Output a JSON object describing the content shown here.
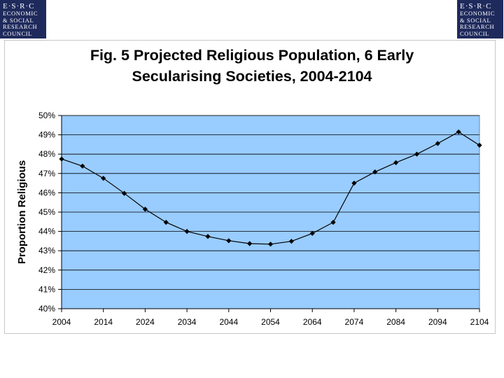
{
  "logo_left": {
    "line1": "E·S·R·C",
    "line2": "ECONOMIC",
    "line3": "& SOCIAL",
    "line4": "RESEARCH",
    "line5": "COUNCIL"
  },
  "logo_right": {
    "line1": "E·S·R·C",
    "line2": "ECONOMIC",
    "line3": "& SOCIAL",
    "line4": "RESEARCH",
    "line5": "COUNCIL"
  },
  "colors": {
    "plot_bg": "#99ccff",
    "grid": "#000000",
    "line": "#000000",
    "logo_bg": "#1f2a5c"
  },
  "chart_data": {
    "type": "line",
    "title_line1": "Fig. 5 Projected Religious Population, 6 Early",
    "title_line2": "Secularising Societies, 2004-2104",
    "xlabel": "",
    "ylabel": "Proportion Religious",
    "x_tick_labels": [
      "2004",
      "2014",
      "2024",
      "2034",
      "2044",
      "2054",
      "2064",
      "2074",
      "2084",
      "2094",
      "2104"
    ],
    "y_tick_labels": [
      "40%",
      "41%",
      "42%",
      "43%",
      "44%",
      "45%",
      "46%",
      "47%",
      "48%",
      "49%",
      "50%"
    ],
    "ylim": [
      40,
      50
    ],
    "grid": true,
    "series": [
      {
        "name": "Proportion Religious",
        "x": [
          2004,
          2009,
          2014,
          2019,
          2024,
          2029,
          2034,
          2039,
          2044,
          2049,
          2054,
          2059,
          2064,
          2069,
          2074,
          2079,
          2084,
          2089,
          2094,
          2099,
          2104
        ],
        "values": [
          47.75,
          47.38,
          46.75,
          45.97,
          45.15,
          44.47,
          44.0,
          43.74,
          43.52,
          43.37,
          43.34,
          43.49,
          43.9,
          44.47,
          46.5,
          47.08,
          47.56,
          48.0,
          48.55,
          49.15,
          48.46
        ]
      }
    ]
  }
}
